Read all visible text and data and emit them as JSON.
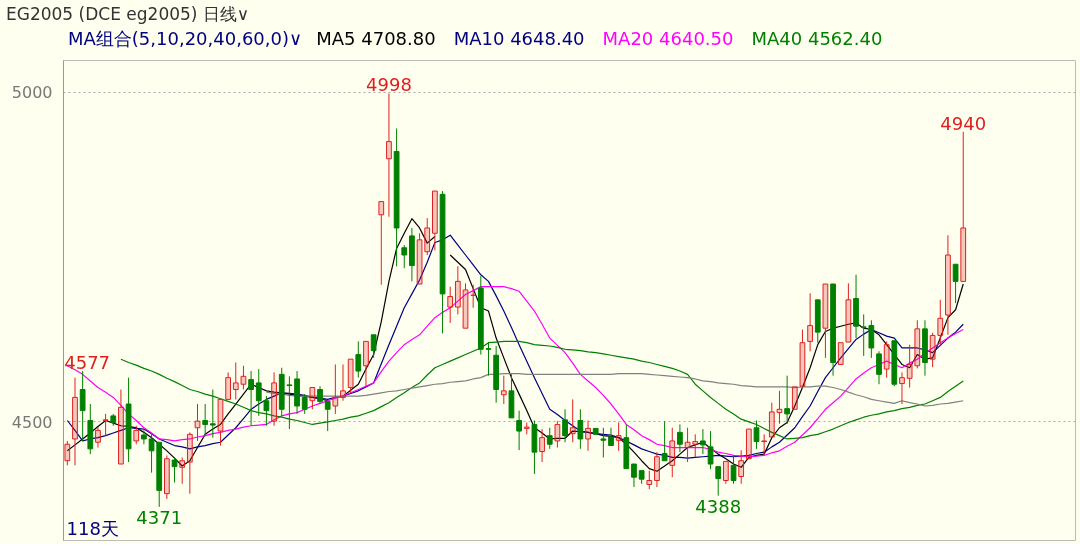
{
  "chart_data": {
    "type": "candlestick",
    "title": "EG2005 (DCE eg2005) 日线∨",
    "subtitle": "MA组合(5,10,20,40,60,0)∨",
    "categories": [
      null,
      null,
      null,
      null,
      null,
      null,
      null,
      null,
      null,
      null,
      null,
      null,
      null,
      null,
      null,
      null,
      null,
      null,
      null,
      null,
      null,
      null,
      null,
      null,
      null,
      null,
      null,
      null,
      null,
      null,
      null,
      null,
      null,
      null,
      null,
      null,
      null,
      null,
      null,
      null,
      null,
      null,
      null,
      null,
      null,
      null,
      null,
      null,
      null,
      null,
      null,
      null,
      null,
      null,
      null,
      null,
      null,
      null,
      null,
      null,
      null,
      null,
      null,
      null,
      null,
      null,
      null,
      null,
      null,
      null,
      null,
      null,
      null,
      null,
      null,
      null,
      null,
      null,
      null,
      null,
      null,
      null,
      null,
      null,
      null,
      null,
      null,
      null,
      null,
      null,
      null,
      null,
      null,
      null,
      null,
      null,
      null,
      null,
      null,
      null,
      null,
      null,
      null,
      null,
      null,
      null,
      null,
      null,
      null,
      null,
      null,
      null,
      null,
      null,
      null,
      null,
      null,
      null
    ],
    "ohlc": [
      [
        4441,
        4471,
        4434,
        4466
      ],
      [
        4474,
        4567,
        4434,
        4537
      ],
      [
        4549,
        4577,
        4471,
        4517
      ],
      [
        4502,
        4527,
        4451,
        4459
      ],
      [
        4469,
        4492,
        4461,
        4487
      ],
      [
        4502,
        4512,
        4479,
        4503
      ],
      [
        4509,
        4512,
        4494,
        4499
      ],
      [
        4436,
        4549,
        4436,
        4522
      ],
      [
        4527,
        4567,
        4439,
        4459
      ],
      [
        4471,
        4494,
        4466,
        4487
      ],
      [
        4480,
        4487,
        4466,
        4474
      ],
      [
        4474,
        4481,
        4423,
        4456
      ],
      [
        4469,
        4469,
        4371,
        4396
      ],
      [
        4391,
        4449,
        4383,
        4444
      ],
      [
        4442,
        4446,
        4408,
        4432
      ],
      [
        4431,
        4446,
        4406,
        4441
      ],
      [
        4439,
        4484,
        4391,
        4481
      ],
      [
        4491,
        4527,
        4471,
        4501
      ],
      [
        4502,
        4527,
        4479,
        4496
      ],
      [
        4497,
        4549,
        4476,
        4495
      ],
      [
        4486,
        4534,
        4464,
        4534
      ],
      [
        4534,
        4575,
        4534,
        4567
      ],
      [
        4549,
        4590,
        4534,
        4559
      ],
      [
        4557,
        4585,
        4549,
        4569
      ],
      [
        4564,
        4577,
        4494,
        4549
      ],
      [
        4559,
        4580,
        4509,
        4532
      ],
      [
        4532,
        4539,
        4494,
        4517
      ],
      [
        4501,
        4575,
        4494,
        4559
      ],
      [
        4572,
        4582,
        4509,
        4519
      ],
      [
        4556,
        4569,
        4489,
        4555
      ],
      [
        4565,
        4577,
        4512,
        4524
      ],
      [
        4537,
        4542,
        4512,
        4519
      ],
      [
        4532,
        4552,
        4519,
        4552
      ],
      [
        4549,
        4554,
        4527,
        4531
      ],
      [
        4531,
        4531,
        4486,
        4519
      ],
      [
        4524,
        4587,
        4512,
        4537
      ],
      [
        4537,
        4587,
        4532,
        4547
      ],
      [
        4552,
        4595,
        4544,
        4595
      ],
      [
        4602,
        4622,
        4567,
        4577
      ],
      [
        4585,
        4622,
        4554,
        4622
      ],
      [
        4632,
        4632,
        4597,
        4608
      ],
      [
        4814,
        4834,
        4708,
        4834
      ],
      [
        4899,
        4998,
        4811,
        4925
      ],
      [
        4910,
        4945,
        4736,
        4794
      ],
      [
        4764,
        4768,
        4733,
        4753
      ],
      [
        4782,
        4794,
        4713,
        4737
      ],
      [
        4709,
        4786,
        4709,
        4776
      ],
      [
        4758,
        4809,
        4753,
        4794
      ],
      [
        4786,
        4850,
        4760,
        4850
      ],
      [
        4845,
        4850,
        4634,
        4694
      ],
      [
        4674,
        4705,
        4650,
        4690
      ],
      [
        4674,
        4736,
        4663,
        4713
      ],
      [
        4642,
        4710,
        4642,
        4700
      ],
      [
        4692,
        4708,
        4673,
        4692
      ],
      [
        4703,
        4721,
        4602,
        4610
      ],
      [
        4611,
        4620,
        4570,
        4610
      ],
      [
        4601,
        4615,
        4529,
        4549
      ],
      [
        4541,
        4570,
        4527,
        4547
      ],
      [
        4547,
        4572,
        4506,
        4506
      ],
      [
        4502,
        4517,
        4457,
        4486
      ],
      [
        4490,
        4499,
        4481,
        4492
      ],
      [
        4496,
        4502,
        4421,
        4454
      ],
      [
        4455,
        4489,
        4439,
        4476
      ],
      [
        4479,
        4491,
        4459,
        4466
      ],
      [
        4471,
        4501,
        4461,
        4496
      ],
      [
        4503,
        4519,
        4469,
        4479
      ],
      [
        4482,
        4534,
        4469,
        4491
      ],
      [
        4502,
        4519,
        4459,
        4474
      ],
      [
        4474,
        4502,
        4456,
        4490
      ],
      [
        4490,
        4490,
        4481,
        4481
      ],
      [
        4474,
        4491,
        4446,
        4472
      ],
      [
        4477,
        4491,
        4464,
        4464
      ],
      [
        4472,
        4499,
        4456,
        4479
      ],
      [
        4476,
        4496,
        4429,
        4429
      ],
      [
        4436,
        4436,
        4401,
        4416
      ],
      [
        4426,
        4426,
        4406,
        4413
      ],
      [
        4405,
        4426,
        4398,
        4411
      ],
      [
        4411,
        4454,
        4401,
        4447
      ],
      [
        4452,
        4501,
        4441,
        4441
      ],
      [
        4434,
        4491,
        4416,
        4471
      ],
      [
        4484,
        4496,
        4454,
        4466
      ],
      [
        4461,
        4491,
        4439,
        4469
      ],
      [
        4466,
        4481,
        4446,
        4470
      ],
      [
        4471,
        4489,
        4451,
        4465
      ],
      [
        4462,
        4486,
        4428,
        4436
      ],
      [
        4432,
        4432,
        4388,
        4414
      ],
      [
        4411,
        4440,
        4406,
        4440
      ],
      [
        4434,
        4449,
        4406,
        4411
      ],
      [
        4417,
        4457,
        4406,
        4441
      ],
      [
        4444,
        4489,
        4444,
        4489
      ],
      [
        4491,
        4502,
        4459,
        4470
      ],
      [
        4470,
        4481,
        4451,
        4471
      ],
      [
        4477,
        4529,
        4477,
        4515
      ],
      [
        4514,
        4547,
        4497,
        4519
      ],
      [
        4520,
        4570,
        4497,
        4512
      ],
      [
        4519,
        4553,
        4519,
        4553
      ],
      [
        4554,
        4640,
        4554,
        4620
      ],
      [
        4622,
        4695,
        4607,
        4646
      ],
      [
        4685,
        4685,
        4620,
        4636
      ],
      [
        4642,
        4709,
        4597,
        4709
      ],
      [
        4709,
        4709,
        4570,
        4590
      ],
      [
        4587,
        4620,
        4587,
        4620
      ],
      [
        4621,
        4710,
        4621,
        4685
      ],
      [
        4687,
        4723,
        4627,
        4645
      ],
      [
        4644,
        4663,
        4600,
        4643
      ],
      [
        4646,
        4654,
        4597,
        4612
      ],
      [
        4603,
        4607,
        4557,
        4572
      ],
      [
        4580,
        4622,
        4567,
        4617
      ],
      [
        4623,
        4623,
        4554,
        4557
      ],
      [
        4558,
        4575,
        4527,
        4567
      ],
      [
        4566,
        4617,
        4552,
        4587
      ],
      [
        4585,
        4654,
        4581,
        4641
      ],
      [
        4641,
        4654,
        4570,
        4590
      ],
      [
        4595,
        4635,
        4583,
        4631
      ],
      [
        4631,
        4685,
        4617,
        4657
      ],
      [
        4662,
        4783,
        4632,
        4753
      ],
      [
        4739,
        4739,
        4680,
        4713
      ],
      [
        4713,
        4940,
        4713,
        4794
      ]
    ],
    "series": [
      {
        "name": "MA5 4708.80",
        "type": "line",
        "color": "#000000",
        "values": [
          4456,
          4465,
          4474,
          4483,
          4493,
          4502,
          4498,
          4494,
          4493,
          4491,
          4484,
          4476,
          4466,
          4456,
          4445,
          4433,
          4441,
          4461,
          4481,
          4489,
          4496,
          4512,
          4527,
          4542,
          4557,
          4552,
          4547,
          4545,
          4544,
          4542,
          4540,
          4539,
          4537,
          4535,
          4532,
          null,
          4539,
          4548,
          4557,
          4580,
          4602,
          4652,
          4713,
          4763,
          4786,
          4808,
          4794,
          4771,
          4781,
          null,
          4753,
          4742,
          4731,
          4702,
          4673,
          4668,
          4627,
          4597,
          4567,
          4542,
          4517,
          4491,
          4483,
          4474,
          4475,
          4475,
          4486,
          4485,
          4484,
          4482,
          4479,
          4478,
          4476,
          4466,
          4454,
          4441,
          4429,
          4425,
          4433,
          4441,
          4451,
          4461,
          4465,
          4469,
          4460,
          4451,
          4444,
          4436,
          4431,
          4446,
          4449,
          4451,
          4476,
          4491,
          4499,
          4524,
          4552,
          4582,
          4617,
          4637,
          4642,
          4645,
          4648,
          4650,
          4642,
          4640,
          4632,
          4617,
          4602,
          4587,
          4582,
          4602,
          4595,
          4597,
          4627,
          4658,
          4670,
          4709
        ]
      },
      {
        "name": "MA10 4648.40",
        "type": "line",
        "color": "#000080",
        "values": [
          4502,
          4487,
          4471,
          4474,
          4476,
          4479,
          4483,
          4487,
          4491,
          4490,
          4489,
          4482,
          4474,
          4469,
          4464,
          4462,
          4459,
          4462,
          4464,
          4467,
          4469,
          4480,
          4491,
          4505,
          4519,
          4527,
          4534,
          4539,
          4544,
          4543,
          4542,
          4540,
          4537,
          4536,
          4534,
          4537,
          4539,
          4543,
          4547,
          4553,
          4559,
          4588,
          4617,
          4645,
          4673,
          4694,
          4715,
          4742,
          4772,
          4776,
          4783,
          4768,
          4753,
          4738,
          4723,
          4713,
          4691,
          4668,
          4643,
          4617,
          4592,
          4567,
          4543,
          4519,
          4511,
          4502,
          4494,
          4486,
          4484,
          4482,
          4481,
          4480,
          4476,
          4471,
          4465,
          4459,
          4455,
          4451,
          4449,
          4446,
          4446,
          4445,
          4446,
          4447,
          4448,
          4449,
          4448,
          4447,
          4448,
          4449,
          4452,
          4454,
          4462,
          4469,
          4480,
          4491,
          4508,
          4524,
          4546,
          4567,
          4582,
          4597,
          4611,
          4625,
          4633,
          4640,
          4635,
          4630,
          4627,
          4612,
          4612,
          4612,
          4609,
          4605,
          4616,
          4627,
          4636,
          4648
        ]
      },
      {
        "name": "MA20 4640.50",
        "type": "line",
        "color": "#ff00ff",
        "values": [
          4585,
          4579,
          4572,
          4562,
          4552,
          4545,
          4537,
          4525,
          4512,
          4502,
          4491,
          4483,
          4474,
          4473,
          4471,
          4473,
          4474,
          4477,
          4479,
          4482,
          4484,
          4487,
          4489,
          4492,
          4494,
          4495,
          4496,
          4503,
          4509,
          4512,
          4514,
          4519,
          4524,
          4528,
          4532,
          4536,
          4539,
          4544,
          4549,
          4554,
          4559,
          4576,
          4592,
          4605,
          4617,
          4625,
          4632,
          4645,
          4658,
          4666,
          4673,
          4683,
          4693,
          4699,
          4705,
          4705,
          4705,
          4705,
          4702,
          4698,
          4683,
          4668,
          4648,
          4627,
          4616,
          4605,
          4589,
          4572,
          4562,
          4552,
          4540,
          4527,
          4512,
          4496,
          4488,
          4479,
          4473,
          4466,
          4464,
          4461,
          4461,
          4461,
          4461,
          4461,
          4458,
          4454,
          4452,
          4449,
          4448,
          4447,
          4448,
          4449,
          4453,
          4456,
          4463,
          4469,
          4480,
          4491,
          4505,
          4519,
          4529,
          4539,
          4552,
          4565,
          4574,
          4582,
          4587,
          4592,
          4587,
          4582,
          4589,
          4595,
          4604,
          4612,
          4620,
          4627,
          4634,
          4640
        ]
      },
      {
        "name": "MA40 4562.40",
        "type": "line",
        "color": "#008000",
        "values": [
          null,
          null,
          null,
          null,
          null,
          null,
          null,
          4595,
          4590,
          4586,
          4581,
          4577,
          4572,
          4566,
          4561,
          4555,
          4549,
          4546,
          4542,
          4539,
          4535,
          4531,
          4527,
          4522,
          4517,
          4514,
          4512,
          4509,
          4507,
          4504,
          4502,
          4499,
          4496,
          4498,
          4500,
          4502,
          4504,
          4507,
          4509,
          4513,
          4517,
          4523,
          4529,
          4537,
          4544,
          4552,
          4559,
          4571,
          4582,
          4587,
          4592,
          4597,
          4602,
          4607,
          4612,
          4620,
          4621,
          4622,
          4622,
          4622,
          4620,
          4617,
          4616,
          4615,
          4613,
          4610,
          4609,
          4608,
          4606,
          4605,
          4603,
          4601,
          4599,
          4597,
          4595,
          4592,
          4590,
          4587,
          4584,
          4581,
          4577,
          4572,
          4557,
          4547,
          4537,
          4528,
          4519,
          4512,
          4504,
          4500,
          4496,
          4490,
          4484,
          4479,
          4474,
          4475,
          4476,
          4479,
          4481,
          4485,
          4489,
          4494,
          4499,
          4503,
          4507,
          4510,
          4512,
          4515,
          4517,
          4520,
          4522,
          4525,
          4527,
          4532,
          4537,
          4546,
          4554,
          4562
        ]
      },
      {
        "type": "line",
        "color": "#808080",
        "values": [
          null,
          null,
          null,
          null,
          null,
          null,
          null,
          null,
          null,
          null,
          null,
          null,
          null,
          null,
          null,
          null,
          null,
          null,
          null,
          null,
          null,
          null,
          null,
          null,
          null,
          null,
          4545,
          4543,
          4542,
          4540,
          4539,
          4539,
          4539,
          4539,
          4539,
          4539,
          4539,
          4539,
          4539,
          4540,
          4542,
          4544,
          4546,
          4547,
          4549,
          4551,
          4553,
          4555,
          4557,
          4558,
          4560,
          4561,
          4562,
          4565,
          4567,
          4572,
          4572,
          4573,
          4573,
          4573,
          4572,
          4572,
          4572,
          4572,
          4572,
          4572,
          4572,
          4572,
          4572,
          4572,
          4572,
          4572,
          4573,
          4573,
          4573,
          4573,
          4572,
          4571,
          4570,
          4569,
          4568,
          4567,
          4565,
          4562,
          4561,
          4559,
          4558,
          4557,
          4555,
          4554,
          4553,
          4553,
          4553,
          4553,
          4553,
          4552,
          4553,
          4553,
          4554,
          4554,
          4552,
          4549,
          4545,
          4541,
          4538,
          4534,
          4532,
          4530,
          4528,
          4532,
          4529,
          4527,
          4524,
          4525,
          4527,
          4528,
          4530,
          4532
        ]
      }
    ],
    "annotations": [
      {
        "text": "4998",
        "y": 4998
      },
      {
        "text": "4940",
        "y": 4940
      },
      {
        "text": "4577",
        "y": 4577
      },
      {
        "text": "4371",
        "y": 4371
      },
      {
        "text": "4388",
        "y": 4388
      },
      "118天"
    ],
    "ylim": [
      4320,
      5048
    ],
    "yticks": [
      4500,
      5000
    ],
    "grid": "y",
    "tick_labels": "y"
  }
}
